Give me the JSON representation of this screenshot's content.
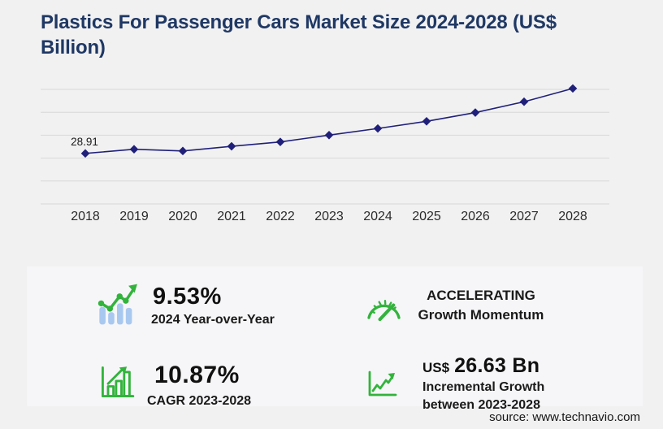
{
  "title": "Plastics For Passenger Cars Market Size 2024-2028 (US$ Billion)",
  "title_lines": [
    "Plastics For Passenger Cars Market Size 2024-2028 (US$",
    "Billion)"
  ],
  "chart_data": {
    "type": "line",
    "title": "Plastics For Passenger Cars Market Size 2024-2028 (US$ Billion)",
    "x": [
      2018,
      2019,
      2020,
      2021,
      2022,
      2023,
      2024,
      2025,
      2026,
      2027,
      2028
    ],
    "series": [
      {
        "name": "Market size (US$ Billion)",
        "values": [
          28.91,
          31.3,
          30.3,
          33.0,
          35.5,
          39.4,
          43.2,
          47.3,
          52.3,
          58.5,
          66.1
        ]
      }
    ],
    "point_labels": [
      {
        "x": 2018,
        "text": "28.91"
      }
    ],
    "xlabel": "",
    "ylabel": "",
    "ylim": [
      0,
      70
    ],
    "grid": "horizontal-only",
    "legend": "none",
    "marker": "diamond",
    "line_color": "#20207a",
    "grid_color": "#d8d8d8",
    "tick_color": "#2b2b2b",
    "point_label_color": "#1a1a1a"
  },
  "stats": [
    {
      "id": "yoy",
      "icon": "bar-chart-trend-icon",
      "value": "9.53%",
      "label": "2024 Year-over-Year"
    },
    {
      "id": "momentum",
      "icon": "speedometer-icon",
      "line1": "ACCELERATING",
      "line2": "Growth Momentum"
    },
    {
      "id": "cagr",
      "icon": "bar-chart-growth-icon",
      "value": "10.87%",
      "label": "CAGR 2023-2028"
    },
    {
      "id": "incremental",
      "icon": "line-chart-up-icon",
      "prefix": "US$",
      "value": "26.63 Bn",
      "label_line1": "Incremental Growth",
      "label_line2": "between 2023-2028"
    }
  ],
  "source": "source: www.technavio.com",
  "colors": {
    "background": "#f1f1f2",
    "panel_background": "#f6f6f8",
    "title_navy": "#1f3864",
    "line_navy": "#20207a",
    "accent_green": "#32b33c",
    "icon_bar_blue": "#a9c8f0",
    "gridline_gray": "#d8d8d8"
  }
}
